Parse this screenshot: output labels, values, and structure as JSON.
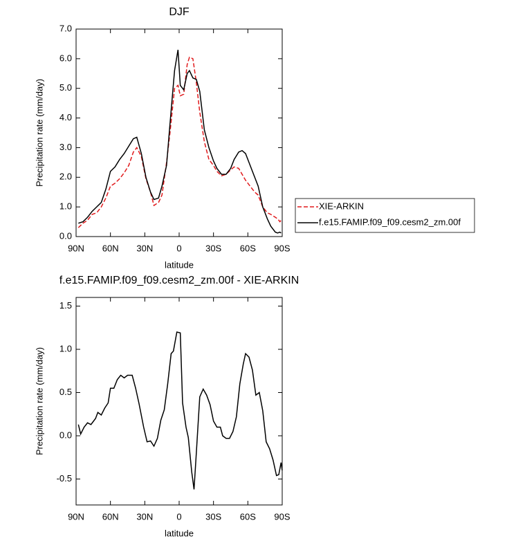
{
  "chart_data": [
    {
      "type": "line",
      "title": "DJF",
      "xlabel": "latitude",
      "ylabel": "Precipitation rate (mm/day)",
      "x": [
        88,
        84,
        80,
        76,
        72,
        68,
        64,
        60,
        56,
        52,
        48,
        44,
        40,
        37,
        33,
        29,
        25,
        22,
        18,
        15,
        11,
        8,
        4,
        1,
        -1,
        -4,
        -7,
        -9,
        -12,
        -15,
        -18,
        -22,
        -26,
        -30,
        -33,
        -37,
        -41,
        -45,
        -48,
        -52,
        -55,
        -58,
        -62,
        -66,
        -69,
        -73,
        -77,
        -80,
        -84,
        -86,
        -88,
        -89
      ],
      "series": [
        {
          "name": "XIE-ARKIN",
          "color": "#e0191b",
          "linestyle": "dashed",
          "values": [
            0.3,
            0.45,
            0.55,
            0.75,
            0.8,
            1.0,
            1.3,
            1.7,
            1.8,
            1.95,
            2.15,
            2.4,
            2.85,
            3.0,
            2.7,
            1.95,
            1.5,
            1.05,
            1.15,
            1.4,
            2.5,
            3.5,
            5.0,
            5.1,
            4.75,
            4.8,
            5.8,
            6.05,
            6.0,
            5.2,
            4.2,
            3.2,
            2.6,
            2.4,
            2.2,
            2.05,
            2.1,
            2.25,
            2.35,
            2.3,
            2.1,
            1.9,
            1.7,
            1.5,
            1.4,
            1.0,
            0.8,
            0.75,
            0.65,
            0.6,
            0.5,
            0.55
          ]
        },
        {
          "name": "f.e15.FAMIP.f09_f09.cesm2_zm.00f",
          "color": "#000000",
          "linestyle": "solid",
          "values": [
            0.45,
            0.5,
            0.65,
            0.85,
            1.0,
            1.15,
            1.6,
            2.2,
            2.35,
            2.6,
            2.8,
            3.05,
            3.3,
            3.35,
            2.8,
            2.0,
            1.5,
            1.25,
            1.3,
            1.7,
            2.4,
            3.8,
            5.6,
            6.3,
            5.1,
            4.95,
            5.5,
            5.6,
            5.35,
            5.3,
            4.9,
            3.6,
            3.0,
            2.55,
            2.3,
            2.1,
            2.1,
            2.3,
            2.6,
            2.85,
            2.9,
            2.8,
            2.4,
            2.0,
            1.7,
            1.0,
            0.6,
            0.35,
            0.15,
            0.12,
            0.15,
            0.12
          ]
        }
      ],
      "xlim": [
        90,
        -90
      ],
      "xticks": [
        {
          "value": 90,
          "label": "90N"
        },
        {
          "value": 60,
          "label": "60N"
        },
        {
          "value": 30,
          "label": "30N"
        },
        0,
        {
          "value": -30,
          "label": "30S"
        },
        {
          "value": -60,
          "label": "60S"
        },
        {
          "value": -90,
          "label": "90S"
        }
      ],
      "ylim": [
        0,
        7
      ],
      "yticks": [
        {
          "value": 0,
          "label": "0.0"
        },
        {
          "value": 1,
          "label": "1.0"
        },
        {
          "value": 2,
          "label": "2.0"
        },
        {
          "value": 3,
          "label": "3.0"
        },
        {
          "value": 4,
          "label": "4.0"
        },
        {
          "value": 5,
          "label": "5.0"
        },
        {
          "value": 6,
          "label": "6.0"
        },
        {
          "value": 7,
          "label": "7.0"
        }
      ],
      "legend": "right"
    },
    {
      "type": "line",
      "title": "f.e15.FAMIP.f09_f09.cesm2_zm.00f - XIE-ARKIN",
      "xlabel": "latitude",
      "ylabel": "Precipitation rate (mm/day)",
      "x": [
        88,
        86,
        83,
        80,
        77,
        73,
        71,
        68,
        65,
        62,
        60,
        57,
        54,
        51,
        48,
        45,
        41,
        38,
        35,
        31,
        28,
        25,
        22,
        19,
        16,
        13,
        10,
        7,
        5,
        2,
        -1,
        -3,
        -6,
        -8,
        -11,
        -13,
        -15,
        -18,
        -21,
        -24,
        -27,
        -30,
        -33,
        -36,
        -38,
        -41,
        -44,
        -47,
        -50,
        -53,
        -56,
        -58,
        -61,
        -64,
        -67,
        -70,
        -73,
        -76,
        -79,
        -82,
        -85,
        -87,
        -89,
        -90
      ],
      "values": [
        0.13,
        0.02,
        0.1,
        0.15,
        0.13,
        0.2,
        0.27,
        0.24,
        0.32,
        0.38,
        0.55,
        0.55,
        0.65,
        0.7,
        0.67,
        0.7,
        0.7,
        0.55,
        0.37,
        0.1,
        -0.07,
        -0.06,
        -0.12,
        -0.03,
        0.18,
        0.3,
        0.6,
        0.95,
        0.98,
        1.2,
        1.19,
        0.38,
        0.1,
        -0.02,
        -0.42,
        -0.62,
        -0.2,
        0.45,
        0.54,
        0.47,
        0.36,
        0.17,
        0.1,
        0.1,
        0.0,
        -0.03,
        -0.03,
        0.05,
        0.22,
        0.6,
        0.83,
        0.95,
        0.91,
        0.76,
        0.47,
        0.5,
        0.29,
        -0.07,
        -0.15,
        -0.28,
        -0.46,
        -0.45,
        -0.31,
        -0.4
      ],
      "color": "#000000",
      "xlim": [
        90,
        -90
      ],
      "xticks": [
        {
          "value": 90,
          "label": "90N"
        },
        {
          "value": 60,
          "label": "60N"
        },
        {
          "value": 30,
          "label": "30N"
        },
        0,
        {
          "value": -30,
          "label": "30S"
        },
        {
          "value": -60,
          "label": "60S"
        },
        {
          "value": -90,
          "label": "90S"
        }
      ],
      "ylim": [
        -0.8,
        1.6
      ],
      "yticks": [
        -0.5,
        {
          "value": 0,
          "label": "0.0"
        },
        0.5,
        {
          "value": 1,
          "label": "1.0"
        },
        1.5
      ]
    }
  ]
}
